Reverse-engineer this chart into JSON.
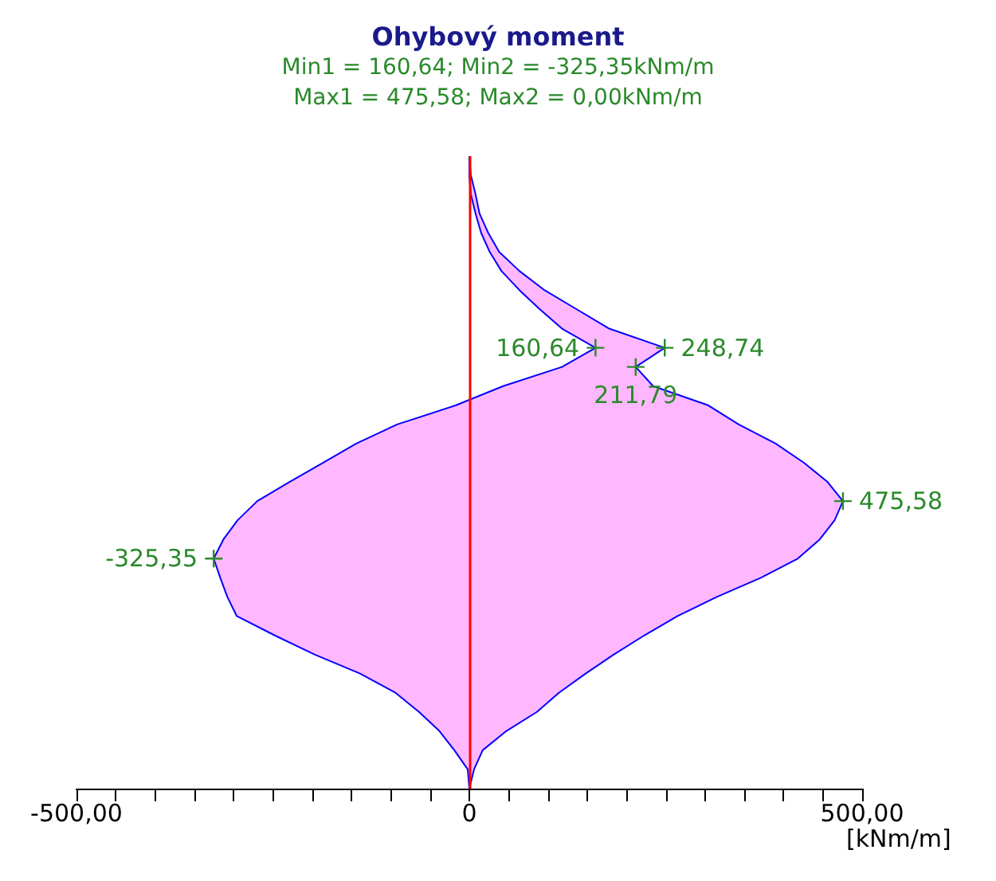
{
  "chart_data": {
    "type": "line",
    "orientation": "horizontal",
    "title": "Ohybový moment",
    "subtitle": "Min1 = 160,64; Min2 = -325,35kNm/m\nMax1 = 475,58; Max2 = 0,00kNm/m",
    "xlabel": "[kNm/m]",
    "categories": [
      null,
      null,
      null,
      null,
      null,
      null,
      null,
      null,
      null,
      null,
      null,
      null,
      null,
      null,
      null,
      null,
      null,
      null,
      null,
      null,
      null,
      null,
      null,
      null,
      null,
      null,
      null,
      null,
      null,
      null,
      null,
      null,
      null,
      null
    ],
    "xlim": [
      -500,
      500
    ],
    "xticks": [
      {
        "value": -500,
        "label": "-500,00"
      },
      {
        "value": -450,
        "label": null
      },
      {
        "value": -400,
        "label": null
      },
      {
        "value": -350,
        "label": null
      },
      {
        "value": -300,
        "label": null
      },
      {
        "value": -250,
        "label": null
      },
      {
        "value": -200,
        "label": null
      },
      {
        "value": -150,
        "label": null
      },
      {
        "value": -100,
        "label": null
      },
      {
        "value": -50,
        "label": null
      },
      {
        "value": 0,
        "label": "0"
      },
      {
        "value": 50,
        "label": null
      },
      {
        "value": 100,
        "label": null
      },
      {
        "value": 150,
        "label": null
      },
      {
        "value": 200,
        "label": null
      },
      {
        "value": 250,
        "label": null
      },
      {
        "value": 300,
        "label": null
      },
      {
        "value": 350,
        "label": null
      },
      {
        "value": 400,
        "label": null
      },
      {
        "value": 450,
        "label": null
      },
      {
        "value": 500,
        "label": "500,00"
      }
    ],
    "series": [
      {
        "color": "#0000ff",
        "values": [
          0,
          2,
          8,
          13,
          24,
          38,
          64,
          96,
          137,
          178,
          248.74,
          211.79,
          234,
          304,
          343,
          390,
          426,
          456,
          475.58,
          465,
          446,
          418,
          371,
          315,
          265,
          223,
          184,
          148,
          114,
          86,
          47,
          17,
          6,
          0
        ],
        "lower": [
          0,
          0,
          2,
          8,
          15,
          26,
          41,
          64,
          90,
          118,
          160.64,
          118,
          43,
          -17,
          -92,
          -144,
          -186,
          -229,
          -270,
          -295,
          -313,
          -325.35,
          -317,
          -308,
          -296,
          -248,
          -197,
          -139,
          -94,
          -64,
          -38,
          -19,
          -2,
          0
        ],
        "upper": [
          0,
          2,
          8,
          13,
          24,
          38,
          64,
          96,
          137,
          178,
          248.74,
          211.79,
          234,
          304,
          343,
          390,
          426,
          456,
          475.58,
          465,
          446,
          418,
          371,
          315,
          265,
          223,
          184,
          148,
          114,
          86,
          47,
          17,
          6,
          0
        ],
        "value_labels": [
          null,
          null,
          null,
          null,
          null,
          null,
          null,
          null,
          null,
          null,
          "248,74",
          "211,79",
          null,
          null,
          null,
          null,
          null,
          null,
          "475,58",
          null,
          null,
          null,
          null,
          null,
          null,
          null,
          null,
          null,
          null,
          null,
          null,
          null,
          null,
          null
        ]
      },
      {
        "color": "#0000ff",
        "values": [
          0,
          0,
          2,
          8,
          15,
          26,
          41,
          64,
          90,
          118,
          160.64,
          118,
          43,
          -17,
          -92,
          -144,
          -186,
          -229,
          -270,
          -295,
          -313,
          -325.35,
          -317,
          -308,
          -296,
          -248,
          -197,
          -139,
          -94,
          -64,
          -38,
          -19,
          -2,
          0
        ],
        "value_labels": [
          null,
          null,
          null,
          null,
          null,
          null,
          null,
          null,
          null,
          null,
          "160,64",
          null,
          null,
          null,
          null,
          null,
          null,
          null,
          null,
          null,
          null,
          "-325,35",
          null,
          null,
          null,
          null,
          null,
          null,
          null,
          null,
          null,
          null,
          null,
          null
        ]
      }
    ],
    "tick_labels": "x",
    "grid": false,
    "ref_lines": [
      {
        "axis": "x",
        "value": 0,
        "label": null,
        "color": "#ff0000"
      }
    ]
  }
}
